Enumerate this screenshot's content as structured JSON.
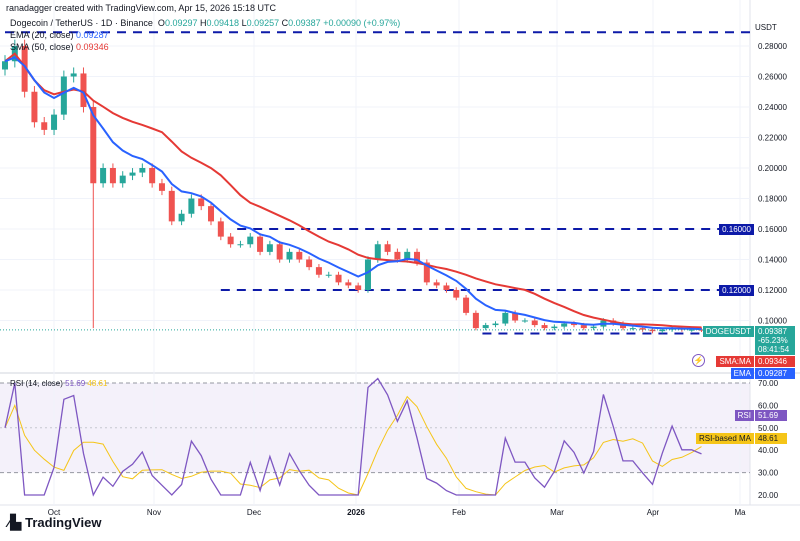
{
  "header": {
    "credit": "ranadagger created with TradingView.com, Apr 15, 2026 15:18 UTC",
    "symbol": "Dogecoin / TetherUS · 1D · Binance",
    "o_label": "O",
    "o": "0.09297",
    "h_label": "H",
    "h": "0.09418",
    "l_label": "L",
    "l": "0.09257",
    "c_label": "C",
    "c": "0.09387",
    "change": "+0.00090 (+0.97%)",
    "ema_label": "EMA (20, close)",
    "ema_value": "0.09287",
    "sma_label": "SMA (50, close)",
    "sma_value": "0.09346",
    "rsi_label": "RSI (14, close)",
    "rsi_value": "51.69",
    "rsi_ma_value": "48.61"
  },
  "axis": {
    "currency": "USDT"
  },
  "badges": {
    "symbol": "DOGEUSDT",
    "price": "0.09387",
    "pct": "-65.23%",
    "countdown": "08:41:54",
    "sma_tag": "SMA:MA",
    "sma_value": "0.09346",
    "ema_tag": "EMA",
    "ema_value": "0.09287",
    "level_016": "0.16000",
    "level_012": "0.12000",
    "rsi_tag": "RSI",
    "rsi_value": "51.69",
    "rsi_ma_tag": "RSI-based MA",
    "rsi_ma_value": "48.61"
  },
  "logo": "TradingView",
  "colors": {
    "up": "#26a69a",
    "down": "#ef5350",
    "ema": "#2962ff",
    "sma": "#e53935",
    "level": "#0d1aa8",
    "rsi": "#7e57c2",
    "rsi_ma": "#f5c518",
    "rsi_bg": "#ede7f6"
  },
  "chart_data": {
    "type": "candlestick",
    "price_ticks": [
      "0.28000",
      "0.26000",
      "0.24000",
      "0.22000",
      "0.20000",
      "0.18000",
      "0.16000",
      "0.14000",
      "0.12000",
      "0.10000"
    ],
    "price_ylim": [
      0.0888,
      0.2895
    ],
    "rsi_ticks": [
      "70.00",
      "60.00",
      "50.00",
      "40.00",
      "30.00",
      "20.00"
    ],
    "rsi_ylim": [
      18,
      76
    ],
    "x_ticks": [
      "Oct",
      "Nov",
      "Dec",
      "2026",
      "Feb",
      "Mar",
      "Apr",
      "Ma"
    ],
    "start_date": "2025-09-15",
    "step_days": 3,
    "closes": [
      0.27,
      0.28,
      0.25,
      0.23,
      0.225,
      0.235,
      0.26,
      0.262,
      0.24,
      0.19,
      0.2,
      0.19,
      0.195,
      0.197,
      0.2,
      0.19,
      0.185,
      0.165,
      0.17,
      0.18,
      0.175,
      0.165,
      0.155,
      0.15,
      0.15,
      0.155,
      0.145,
      0.15,
      0.14,
      0.145,
      0.14,
      0.135,
      0.13,
      0.13,
      0.125,
      0.123,
      0.12,
      0.14,
      0.15,
      0.145,
      0.14,
      0.145,
      0.138,
      0.125,
      0.123,
      0.12,
      0.115,
      0.105,
      0.095,
      0.097,
      0.098,
      0.105,
      0.1,
      0.1,
      0.097,
      0.095,
      0.096,
      0.098,
      0.097,
      0.095,
      0.096,
      0.1,
      0.098,
      0.095,
      0.095,
      0.094,
      0.093,
      0.094,
      0.095,
      0.094,
      0.094,
      0.09387
    ],
    "wick_low": {
      "index": 9,
      "value": 0.095
    },
    "levels": [
      {
        "value": 0.289,
        "from": "2025-09-15"
      },
      {
        "value": 0.16,
        "from": "2025-11-25"
      },
      {
        "value": 0.12,
        "from": "2025-11-20"
      },
      {
        "value": 0.0915,
        "from": "2026-02-08"
      }
    ],
    "rsi_bands": [
      70,
      30
    ]
  }
}
